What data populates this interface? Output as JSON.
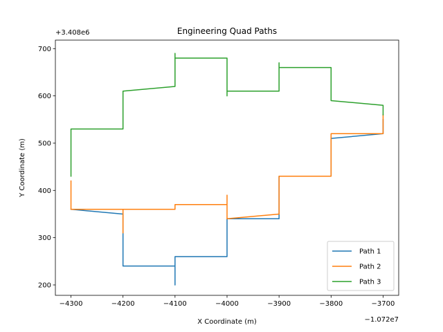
{
  "chart_data": {
    "type": "line",
    "title": "Engineering Quad Paths",
    "xlabel": "X Coordinate (m)",
    "ylabel": "Y Coordinate (m)",
    "x_offset_label": "−1.072e7",
    "y_offset_label": "+3.408e6",
    "xlim": [
      -4330,
      -3670
    ],
    "ylim": [
      178,
      718
    ],
    "x_ticks": [
      -4300,
      -4200,
      -4100,
      -4000,
      -3900,
      -3800,
      -3700
    ],
    "x_tick_labels": [
      "−4300",
      "−4200",
      "−4100",
      "−4000",
      "−3900",
      "−3800",
      "−3700"
    ],
    "y_ticks": [
      200,
      300,
      400,
      500,
      600,
      700
    ],
    "y_tick_labels": [
      "200",
      "300",
      "400",
      "500",
      "600",
      "700"
    ],
    "grid": false,
    "legend_position": "lower-right",
    "series": [
      {
        "name": "Path 1",
        "color": "#1f77b4",
        "points": [
          [
            -4300,
            360
          ],
          [
            -4200,
            350
          ],
          [
            -4200,
            240
          ],
          [
            -4100,
            240
          ],
          [
            -4100,
            200
          ],
          [
            -4100,
            260
          ],
          [
            -4000,
            260
          ],
          [
            -4000,
            340
          ],
          [
            -3900,
            340
          ],
          [
            -3900,
            430
          ],
          [
            -3800,
            430
          ],
          [
            -3800,
            510
          ],
          [
            -3700,
            520
          ],
          [
            -3700,
            550
          ]
        ]
      },
      {
        "name": "Path 2",
        "color": "#ff7f0e",
        "points": [
          [
            -4300,
            420
          ],
          [
            -4300,
            360
          ],
          [
            -4200,
            360
          ],
          [
            -4200,
            310
          ],
          [
            -4200,
            360
          ],
          [
            -4100,
            360
          ],
          [
            -4100,
            370
          ],
          [
            -4000,
            370
          ],
          [
            -4000,
            390
          ],
          [
            -4000,
            340
          ],
          [
            -3900,
            350
          ],
          [
            -3900,
            430
          ],
          [
            -3800,
            430
          ],
          [
            -3800,
            520
          ],
          [
            -3700,
            520
          ],
          [
            -3700,
            560
          ]
        ]
      },
      {
        "name": "Path 3",
        "color": "#2ca02c",
        "points": [
          [
            -4300,
            430
          ],
          [
            -4300,
            530
          ],
          [
            -4200,
            530
          ],
          [
            -4200,
            610
          ],
          [
            -4100,
            620
          ],
          [
            -4100,
            690
          ],
          [
            -4100,
            680
          ],
          [
            -4000,
            680
          ],
          [
            -4000,
            600
          ],
          [
            -4000,
            610
          ],
          [
            -3900,
            610
          ],
          [
            -3900,
            670
          ],
          [
            -3900,
            660
          ],
          [
            -3800,
            660
          ],
          [
            -3800,
            590
          ],
          [
            -3700,
            580
          ],
          [
            -3700,
            560
          ]
        ]
      }
    ]
  }
}
